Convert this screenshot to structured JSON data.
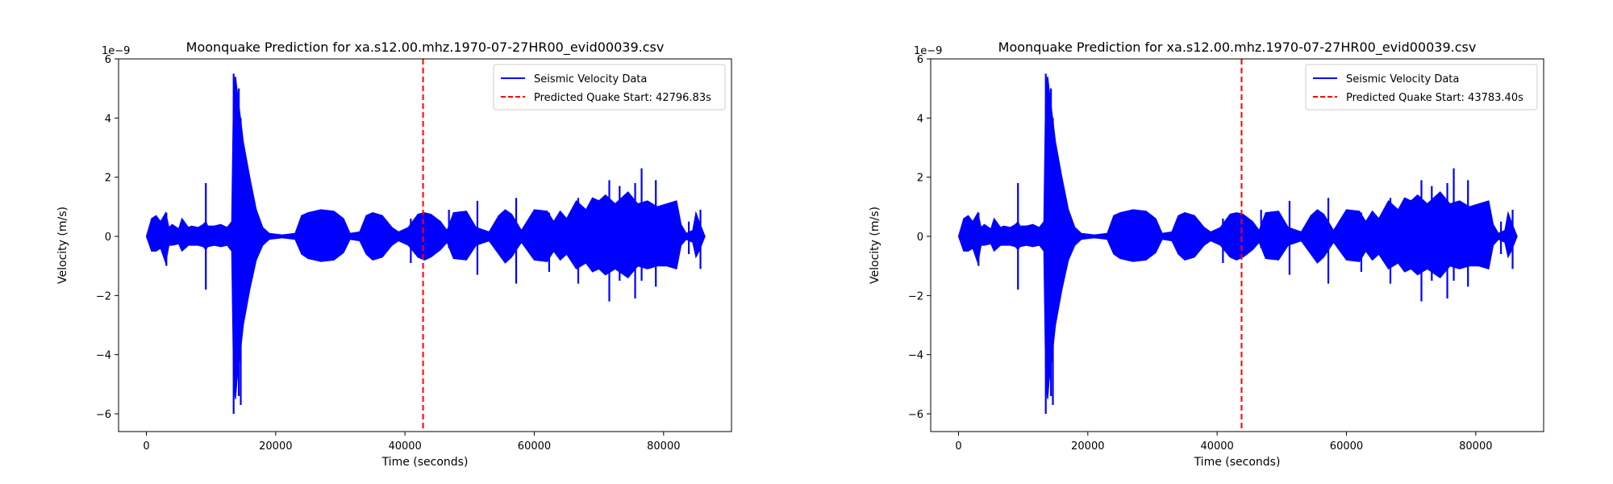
{
  "chart_data": [
    {
      "type": "line",
      "title": "Moonquake Prediction for xa.s12.00.mhz.1970-07-27HR00_evid00039.csv",
      "xlabel": "Time (seconds)",
      "ylabel": "Velocity (m/s)",
      "y_offset_label": "1e−9",
      "xlim": [
        -4300,
        90500
      ],
      "ylim": [
        -6.6,
        6.0
      ],
      "x_ticks": [
        0,
        20000,
        40000,
        60000,
        80000
      ],
      "x_tick_labels": [
        "0",
        "20000",
        "40000",
        "60000",
        "80000"
      ],
      "y_ticks": [
        -6,
        -4,
        -2,
        0,
        2,
        4,
        6
      ],
      "y_tick_labels": [
        "−6",
        "−4",
        "−2",
        "0",
        "2",
        "4",
        "6"
      ],
      "grid": false,
      "legend_position": "upper right",
      "series": [
        {
          "name": "Seismic Velocity Data",
          "color": "#0000ff",
          "style": "solid",
          "envelope": {
            "x": [
              0,
              800,
              1500,
              2200,
              3000,
              3500,
              4000,
              5000,
              5500,
              6500,
              7000,
              8000,
              8800,
              9200,
              9500,
              10500,
              11500,
              12500,
              13200,
              13500,
              13800,
              14000,
              14500,
              15000,
              16000,
              17000,
              18000,
              19000,
              21000,
              23000,
              24000,
              25000,
              27000,
              29000,
              30500,
              31500,
              33000,
              34000,
              35000,
              36500,
              38000,
              39000,
              40500,
              42000,
              43000,
              44000,
              45500,
              46500,
              47500,
              49500,
              51000,
              53000,
              54500,
              55500,
              56500,
              58000,
              60000,
              62000,
              63000,
              64000,
              65000,
              66500,
              68000,
              69000,
              70000,
              71000,
              72500,
              74500,
              76000,
              77500,
              79000,
              80500,
              82000,
              82700,
              83500,
              84500,
              85000,
              85500,
              86400
            ],
            "upper": [
              0.0,
              0.6,
              0.7,
              0.5,
              0.8,
              0.3,
              0.4,
              0.25,
              0.6,
              0.3,
              0.35,
              0.3,
              0.4,
              0.5,
              0.35,
              0.35,
              0.4,
              0.3,
              0.5,
              5.2,
              5.4,
              5.0,
              4.1,
              3.2,
              2.0,
              0.9,
              0.3,
              0.1,
              0.05,
              0.1,
              0.7,
              0.8,
              0.9,
              0.85,
              0.6,
              0.1,
              0.15,
              0.7,
              0.8,
              0.7,
              0.3,
              0.15,
              0.3,
              0.75,
              0.8,
              0.75,
              0.5,
              0.2,
              0.8,
              0.85,
              0.3,
              0.15,
              0.7,
              0.9,
              0.75,
              0.2,
              0.9,
              0.85,
              0.5,
              0.85,
              0.6,
              1.2,
              0.9,
              1.3,
              1.2,
              1.4,
              1.1,
              1.5,
              1.1,
              1.2,
              1.0,
              1.1,
              1.2,
              0.4,
              0.1,
              0.2,
              0.8,
              0.5,
              0.0
            ],
            "lower": [
              0.0,
              -0.5,
              -0.5,
              -0.4,
              -0.9,
              -0.3,
              -0.3,
              -0.25,
              -0.5,
              -0.3,
              -0.3,
              -0.3,
              -0.35,
              -0.45,
              -0.35,
              -0.3,
              -0.35,
              -0.3,
              -0.5,
              -5.0,
              -5.5,
              -4.9,
              -4.0,
              -3.0,
              -1.8,
              -0.8,
              -0.3,
              -0.1,
              -0.05,
              -0.1,
              -0.6,
              -0.75,
              -0.85,
              -0.8,
              -0.55,
              -0.1,
              -0.15,
              -0.6,
              -0.8,
              -0.7,
              -0.3,
              -0.15,
              -0.3,
              -0.7,
              -0.8,
              -0.7,
              -0.45,
              -0.2,
              -0.75,
              -0.8,
              -0.3,
              -0.15,
              -0.6,
              -0.9,
              -0.7,
              -0.2,
              -0.8,
              -0.85,
              -0.5,
              -0.8,
              -0.6,
              -1.1,
              -0.9,
              -1.2,
              -1.1,
              -1.3,
              -1.1,
              -1.4,
              -1.0,
              -1.1,
              -1.0,
              -1.0,
              -1.1,
              -0.3,
              -0.1,
              -0.2,
              -0.7,
              -0.5,
              0.0
            ]
          },
          "spikes": [
            {
              "x": 3100,
              "min": -1.0,
              "max": 0.8
            },
            {
              "x": 9200,
              "min": -1.8,
              "max": 1.8
            },
            {
              "x": 13500,
              "min": -6.0,
              "max": 5.5
            },
            {
              "x": 14300,
              "min": -5.4,
              "max": 5.0
            },
            {
              "x": 14600,
              "min": -5.7,
              "max": 4.0
            },
            {
              "x": 22700,
              "min": -0.1,
              "max": 0.0
            },
            {
              "x": 40900,
              "min": -0.9,
              "max": 0.6
            },
            {
              "x": 41800,
              "min": -0.6,
              "max": 0.5
            },
            {
              "x": 46800,
              "min": -0.4,
              "max": 0.9
            },
            {
              "x": 51200,
              "min": -1.3,
              "max": 1.2
            },
            {
              "x": 57200,
              "min": -1.6,
              "max": 1.3
            },
            {
              "x": 62300,
              "min": -1.2,
              "max": 0.8
            },
            {
              "x": 66800,
              "min": -1.6,
              "max": 1.3
            },
            {
              "x": 71600,
              "min": -2.2,
              "max": 1.9
            },
            {
              "x": 73200,
              "min": -1.5,
              "max": 1.7
            },
            {
              "x": 75600,
              "min": -2.1,
              "max": 1.8
            },
            {
              "x": 76600,
              "min": -1.5,
              "max": 2.3
            },
            {
              "x": 78800,
              "min": -1.7,
              "max": 1.9
            },
            {
              "x": 83900,
              "min": -0.6,
              "max": 0.5
            },
            {
              "x": 85700,
              "min": -1.1,
              "max": 0.9
            }
          ]
        },
        {
          "name": "Predicted Quake Start: 42796.83s",
          "color": "#ff0000",
          "style": "dashed",
          "x": 42796.83
        }
      ]
    },
    {
      "type": "line",
      "title": "Moonquake Prediction for xa.s12.00.mhz.1970-07-27HR00_evid00039.csv",
      "xlabel": "Time (seconds)",
      "ylabel": "Velocity (m/s)",
      "y_offset_label": "1e−9",
      "xlim": [
        -4300,
        90500
      ],
      "ylim": [
        -6.6,
        6.0
      ],
      "x_ticks": [
        0,
        20000,
        40000,
        60000,
        80000
      ],
      "x_tick_labels": [
        "0",
        "20000",
        "40000",
        "60000",
        "80000"
      ],
      "y_ticks": [
        -6,
        -4,
        -2,
        0,
        2,
        4,
        6
      ],
      "y_tick_labels": [
        "−6",
        "−4",
        "−2",
        "0",
        "2",
        "4",
        "6"
      ],
      "grid": false,
      "legend_position": "upper right",
      "series": [
        {
          "name": "Seismic Velocity Data",
          "color": "#0000ff",
          "style": "solid",
          "envelope": {
            "x": [
              0,
              800,
              1500,
              2200,
              3000,
              3500,
              4000,
              5000,
              5500,
              6500,
              7000,
              8000,
              8800,
              9200,
              9500,
              10500,
              11500,
              12500,
              13200,
              13500,
              13800,
              14000,
              14500,
              15000,
              16000,
              17000,
              18000,
              19000,
              21000,
              23000,
              24000,
              25000,
              27000,
              29000,
              30500,
              31500,
              33000,
              34000,
              35000,
              36500,
              38000,
              39000,
              40500,
              42000,
              43000,
              44000,
              45500,
              46500,
              47500,
              49500,
              51000,
              53000,
              54500,
              55500,
              56500,
              58000,
              60000,
              62000,
              63000,
              64000,
              65000,
              66500,
              68000,
              69000,
              70000,
              71000,
              72500,
              74500,
              76000,
              77500,
              79000,
              80500,
              82000,
              82700,
              83500,
              84500,
              85000,
              85500,
              86400
            ],
            "upper": [
              0.0,
              0.6,
              0.7,
              0.5,
              0.8,
              0.3,
              0.4,
              0.25,
              0.6,
              0.3,
              0.35,
              0.3,
              0.4,
              0.5,
              0.35,
              0.35,
              0.4,
              0.3,
              0.5,
              5.2,
              5.4,
              5.0,
              4.1,
              3.2,
              2.0,
              0.9,
              0.3,
              0.1,
              0.05,
              0.1,
              0.7,
              0.8,
              0.9,
              0.85,
              0.6,
              0.1,
              0.15,
              0.7,
              0.8,
              0.7,
              0.3,
              0.15,
              0.3,
              0.75,
              0.8,
              0.75,
              0.5,
              0.2,
              0.8,
              0.85,
              0.3,
              0.15,
              0.7,
              0.9,
              0.75,
              0.2,
              0.9,
              0.85,
              0.5,
              0.85,
              0.6,
              1.2,
              0.9,
              1.3,
              1.2,
              1.4,
              1.1,
              1.5,
              1.1,
              1.2,
              1.0,
              1.1,
              1.2,
              0.4,
              0.1,
              0.2,
              0.8,
              0.5,
              0.0
            ],
            "lower": [
              0.0,
              -0.5,
              -0.5,
              -0.4,
              -0.9,
              -0.3,
              -0.3,
              -0.25,
              -0.5,
              -0.3,
              -0.3,
              -0.3,
              -0.35,
              -0.45,
              -0.35,
              -0.3,
              -0.35,
              -0.3,
              -0.5,
              -5.0,
              -5.5,
              -4.9,
              -4.0,
              -3.0,
              -1.8,
              -0.8,
              -0.3,
              -0.1,
              -0.05,
              -0.1,
              -0.6,
              -0.75,
              -0.85,
              -0.8,
              -0.55,
              -0.1,
              -0.15,
              -0.6,
              -0.8,
              -0.7,
              -0.3,
              -0.15,
              -0.3,
              -0.7,
              -0.8,
              -0.7,
              -0.45,
              -0.2,
              -0.75,
              -0.8,
              -0.3,
              -0.15,
              -0.6,
              -0.9,
              -0.7,
              -0.2,
              -0.8,
              -0.85,
              -0.5,
              -0.8,
              -0.6,
              -1.1,
              -0.9,
              -1.2,
              -1.1,
              -1.3,
              -1.1,
              -1.4,
              -1.0,
              -1.1,
              -1.0,
              -1.0,
              -1.1,
              -0.3,
              -0.1,
              -0.2,
              -0.7,
              -0.5,
              0.0
            ]
          },
          "spikes": [
            {
              "x": 3100,
              "min": -1.0,
              "max": 0.8
            },
            {
              "x": 9200,
              "min": -1.8,
              "max": 1.8
            },
            {
              "x": 13500,
              "min": -6.0,
              "max": 5.5
            },
            {
              "x": 14300,
              "min": -5.4,
              "max": 5.0
            },
            {
              "x": 14600,
              "min": -5.7,
              "max": 4.0
            },
            {
              "x": 22700,
              "min": -0.1,
              "max": 0.0
            },
            {
              "x": 40900,
              "min": -0.9,
              "max": 0.6
            },
            {
              "x": 41800,
              "min": -0.6,
              "max": 0.5
            },
            {
              "x": 46800,
              "min": -0.4,
              "max": 0.9
            },
            {
              "x": 51200,
              "min": -1.3,
              "max": 1.2
            },
            {
              "x": 57200,
              "min": -1.6,
              "max": 1.3
            },
            {
              "x": 62300,
              "min": -1.2,
              "max": 0.8
            },
            {
              "x": 66800,
              "min": -1.6,
              "max": 1.3
            },
            {
              "x": 71600,
              "min": -2.2,
              "max": 1.9
            },
            {
              "x": 73200,
              "min": -1.5,
              "max": 1.7
            },
            {
              "x": 75600,
              "min": -2.1,
              "max": 1.8
            },
            {
              "x": 76600,
              "min": -1.5,
              "max": 2.3
            },
            {
              "x": 78800,
              "min": -1.7,
              "max": 1.9
            },
            {
              "x": 83900,
              "min": -0.6,
              "max": 0.5
            },
            {
              "x": 85700,
              "min": -1.1,
              "max": 0.9
            }
          ]
        },
        {
          "name": "Predicted Quake Start: 43783.40s",
          "color": "#ff0000",
          "style": "dashed",
          "x": 43783.4
        }
      ]
    }
  ]
}
